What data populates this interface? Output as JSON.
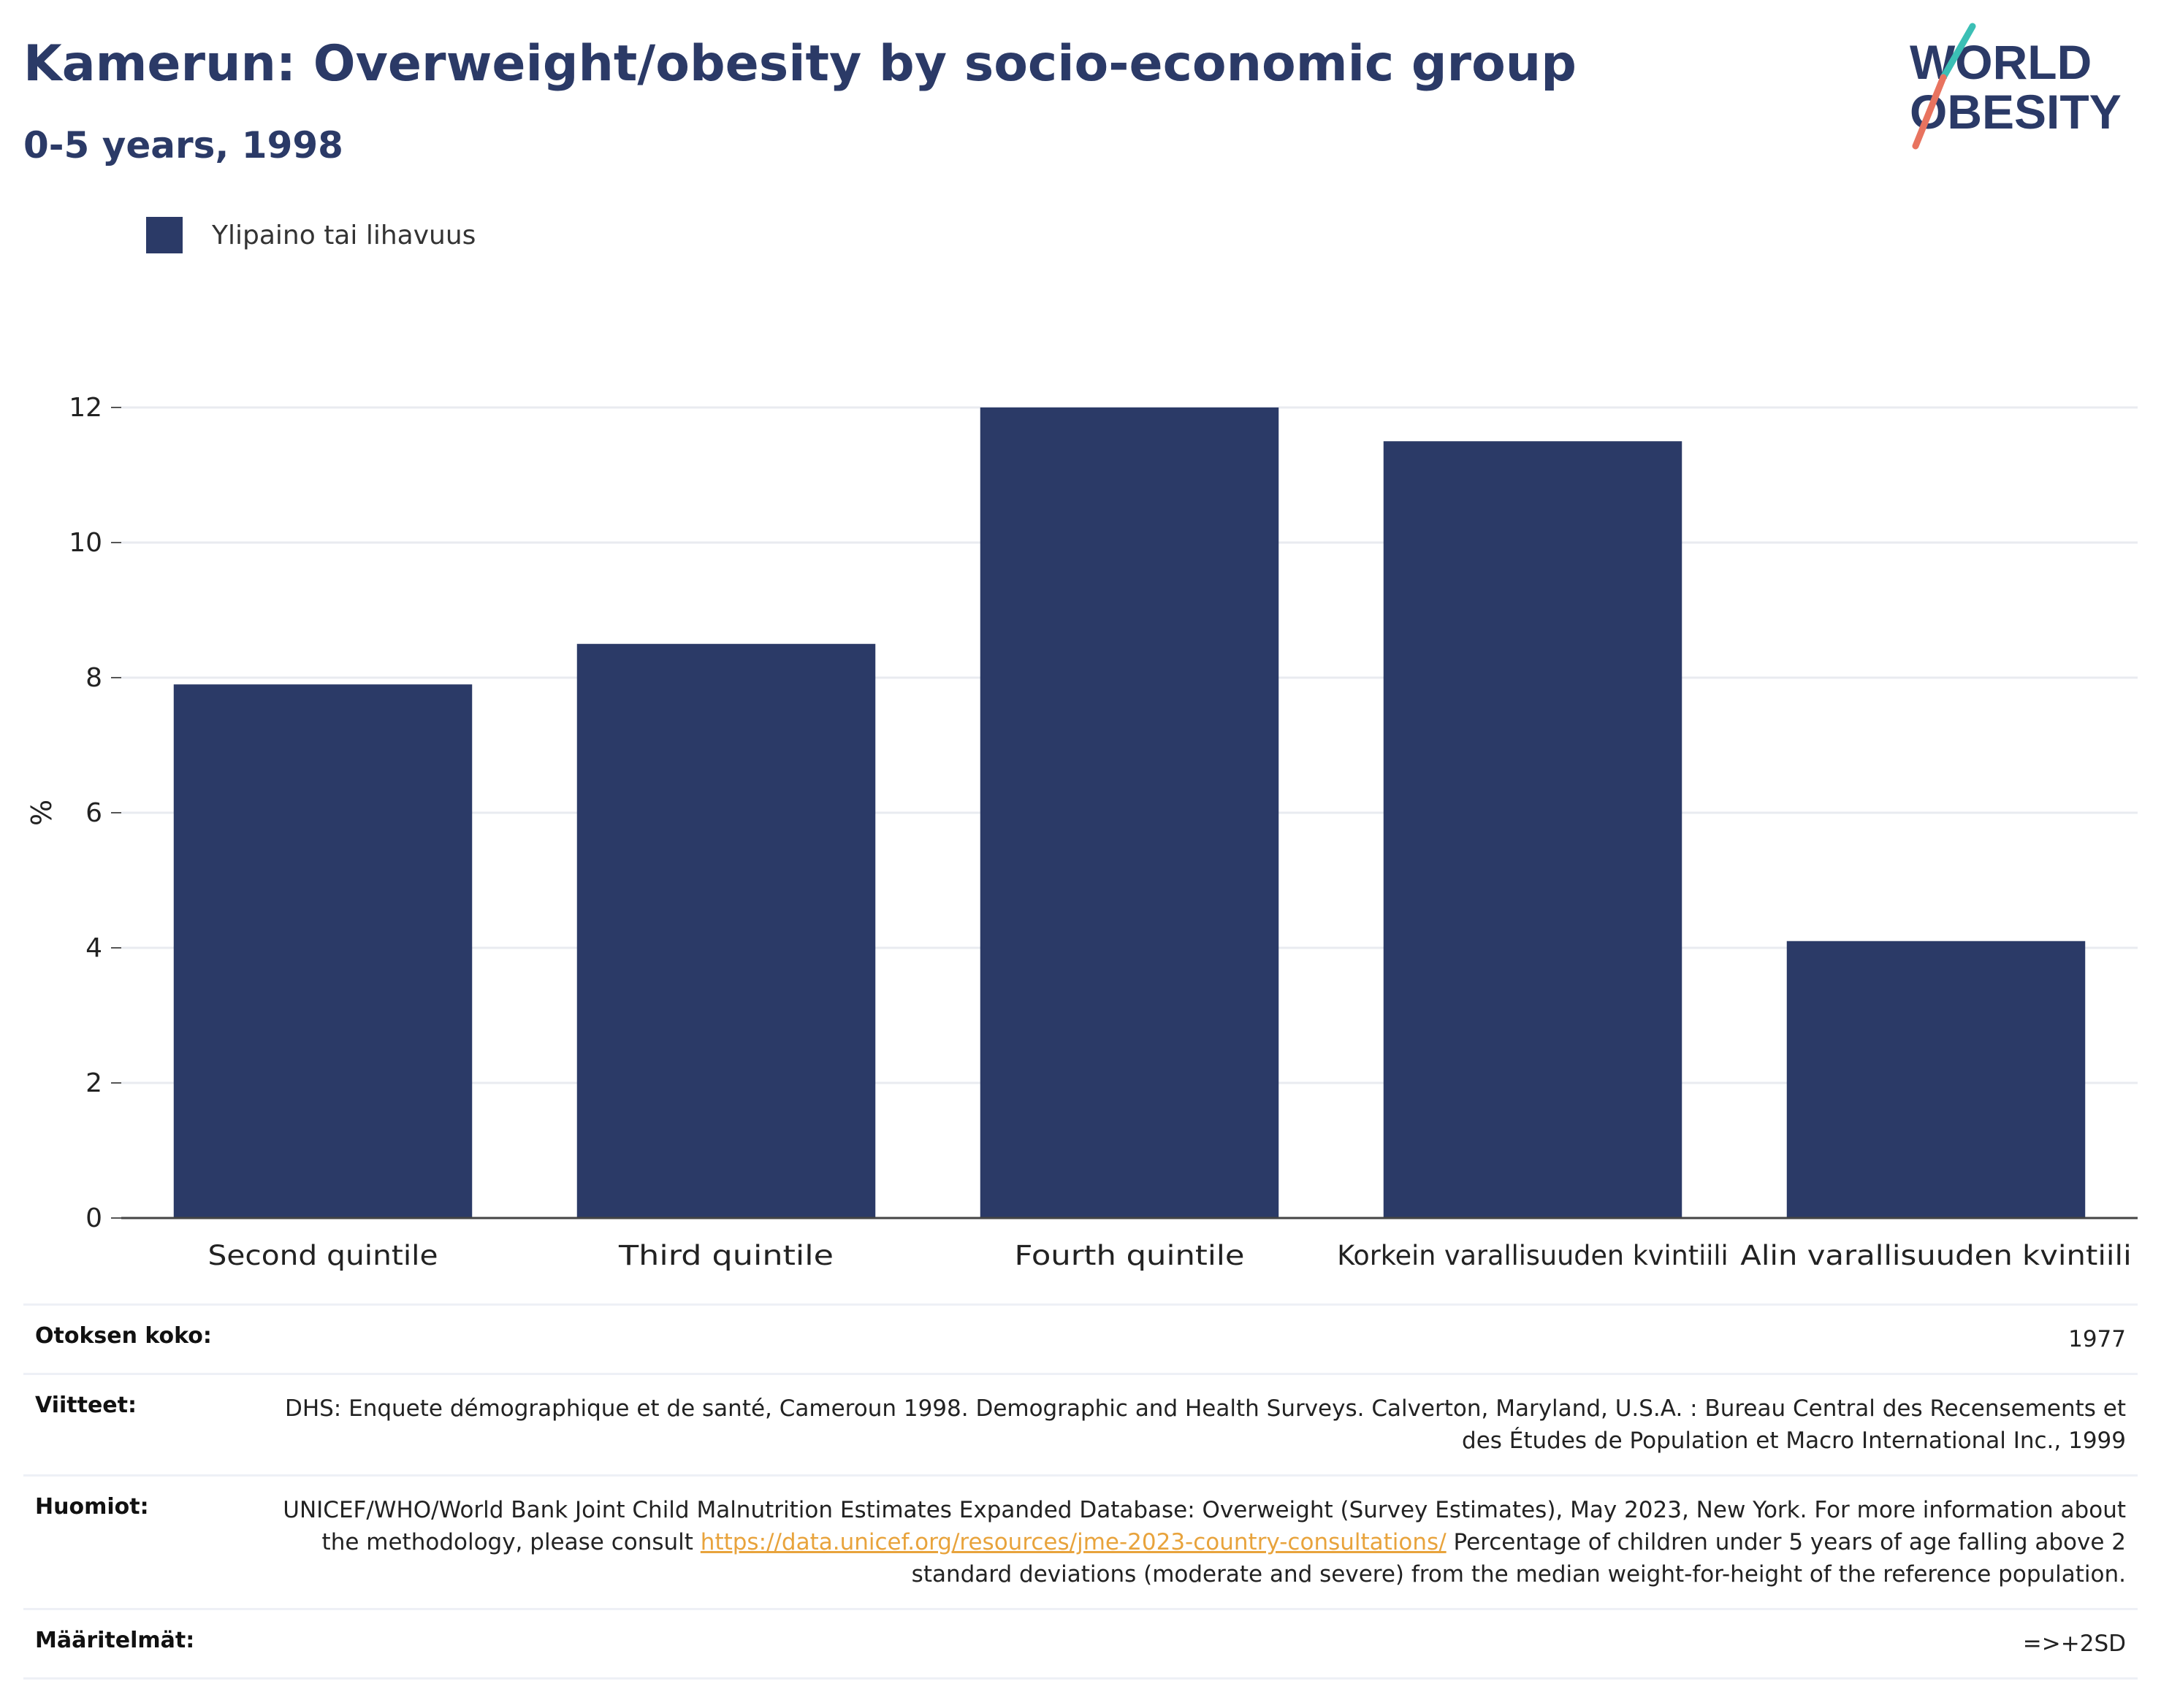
{
  "header": {
    "title": "Kamerun: Overweight/obesity by socio-economic group",
    "subtitle": "0-5 years, 1998"
  },
  "logo": {
    "line1": "WORLD",
    "line2": "OBESITY"
  },
  "legend": {
    "label": "Ylipaino tai lihavuus"
  },
  "colors": {
    "bar": "#2b3a67",
    "title": "#2b3a67",
    "logo_teal": "#3bbfb5",
    "logo_coral": "#e8735f",
    "link": "#e8a33c"
  },
  "chart_data": {
    "type": "bar",
    "categories": [
      "Second quintile",
      "Third quintile",
      "Fourth quintile",
      "Korkein varallisuuden kvintiili",
      "Alin varallisuuden kvintiili"
    ],
    "series": [
      {
        "name": "Ylipaino tai lihavuus",
        "values": [
          7.9,
          8.5,
          12.0,
          11.5,
          4.1
        ]
      }
    ],
    "ylabel": "%",
    "ylim": [
      0,
      12
    ],
    "yticks": [
      0,
      2,
      4,
      6,
      8,
      10,
      12
    ],
    "grid": true,
    "legend": "top-left"
  },
  "info": {
    "sample_size": {
      "label": "Otoksen koko:",
      "value": "1977"
    },
    "references": {
      "label": "Viitteet:",
      "value": "DHS: Enquete démographique et de santé, Cameroun 1998. Demographic and Health Surveys. Calverton, Maryland, U.S.A. : Bureau Central des Recensements et des Études de Population et Macro International Inc., 1999"
    },
    "notes": {
      "label": "Huomiot:",
      "text_before": "UNICEF/WHO/World Bank Joint Child Malnutrition Estimates Expanded Database: Overweight (Survey Estimates), May 2023, New York. For more information about the methodology, please consult ",
      "link": "https://data.unicef.org/resources/jme-2023-country-consultations/",
      "text_after": " Percentage of children under 5 years of age falling above 2 standard deviations (moderate and severe) from the median weight-for-height of the reference population."
    },
    "definitions": {
      "label": "Määritelmät:",
      "value": "=>+2SD"
    }
  }
}
